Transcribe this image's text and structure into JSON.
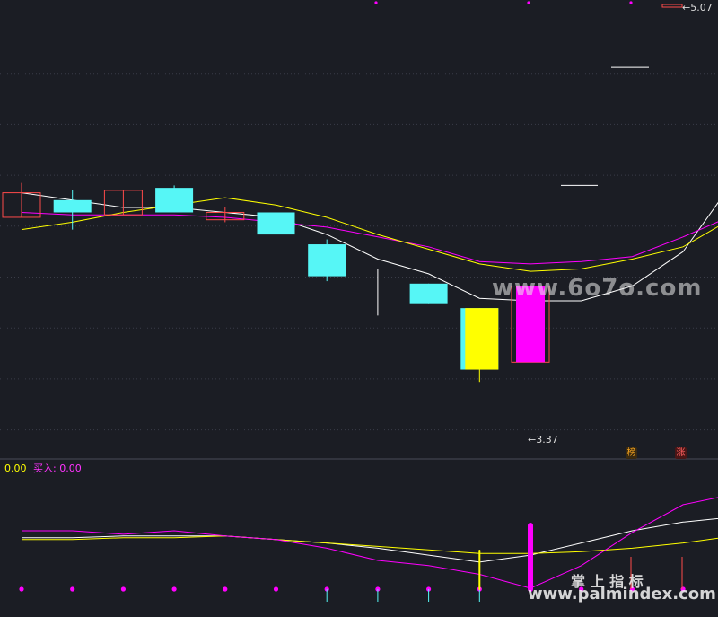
{
  "chart_data": {
    "type": "candlestick",
    "ylim": [
      3.25,
      5.1
    ],
    "grid": true,
    "candles": [
      {
        "open": 4.23,
        "close": 4.33,
        "high": 4.37,
        "low": 4.23,
        "color": "red"
      },
      {
        "open": 4.3,
        "close": 4.25,
        "high": 4.34,
        "low": 4.18,
        "color": "cyan"
      },
      {
        "open": 4.24,
        "close": 4.34,
        "high": 4.34,
        "low": 4.24,
        "color": "red"
      },
      {
        "open": 4.35,
        "close": 4.25,
        "high": 4.36,
        "low": 4.25,
        "color": "cyan"
      },
      {
        "open": 4.22,
        "close": 4.25,
        "high": 4.27,
        "low": 4.21,
        "color": "red"
      },
      {
        "open": 4.25,
        "close": 4.16,
        "high": 4.26,
        "low": 4.1,
        "color": "cyan"
      },
      {
        "open": 4.12,
        "close": 3.99,
        "high": 4.14,
        "low": 3.97,
        "color": "cyan"
      },
      {
        "open": 3.95,
        "close": 3.95,
        "high": 4.02,
        "low": 3.83,
        "color": "white"
      },
      {
        "open": 3.96,
        "close": 3.88,
        "high": 3.96,
        "low": 3.88,
        "color": "cyan"
      },
      {
        "open": 3.86,
        "close": 3.61,
        "high": 3.86,
        "low": 3.56,
        "color": "yellow"
      },
      {
        "open": 3.64,
        "close": 3.95,
        "high": 3.95,
        "low": 3.64,
        "color": "magenta"
      }
    ],
    "ma_lines": [
      {
        "color": "#ffffff",
        "values": [
          4.33,
          4.3,
          4.27,
          4.27,
          4.25,
          4.23,
          4.16,
          4.06,
          4.0,
          3.9,
          3.89,
          3.89,
          3.95,
          4.09,
          4.38
        ]
      },
      {
        "color": "#ff00ff",
        "values": [
          4.25,
          4.24,
          4.24,
          4.24,
          4.23,
          4.21,
          4.19,
          4.15,
          4.11,
          4.05,
          4.04,
          4.05,
          4.07,
          4.15,
          4.24
        ]
      },
      {
        "color": "#ffff00",
        "values": [
          4.18,
          4.21,
          4.25,
          4.28,
          4.31,
          4.28,
          4.23,
          4.16,
          4.1,
          4.04,
          4.01,
          4.02,
          4.06,
          4.11,
          4.23
        ]
      }
    ],
    "dashes": [
      {
        "y": 4.84,
        "x0": 681,
        "x1": 723
      },
      {
        "y": 4.36,
        "x0": 625,
        "x1": 666
      }
    ],
    "annotations": {
      "high_label": "5.07",
      "low_label": "3.37",
      "arrow": "←"
    },
    "badges": [
      {
        "text": "榜",
        "color": "#f0a020",
        "bg": "#3a2a10"
      },
      {
        "text": "涨",
        "color": "#ff6060",
        "bg": "#4a1616"
      }
    ],
    "indicator": {
      "label_a": "0.00",
      "label_b_name": "买入:",
      "label_b_value": "0.00",
      "ylim": [
        0,
        10
      ],
      "white": [
        5.8,
        5.8,
        6.0,
        6.0,
        6.0,
        5.6,
        5.2,
        4.6,
        3.8,
        3.0,
        3.8,
        5.2,
        6.6,
        7.6,
        8.2
      ],
      "yellow": [
        5.6,
        5.6,
        5.8,
        5.8,
        6.0,
        5.6,
        5.2,
        4.8,
        4.4,
        4.0,
        4.0,
        4.2,
        4.6,
        5.2,
        6.0
      ],
      "magenta": [
        6.6,
        6.6,
        6.2,
        6.6,
        6.0,
        5.6,
        4.6,
        3.2,
        2.6,
        1.6,
        0.0,
        2.6,
        6.4,
        9.6,
        10.8
      ],
      "bars": [
        {
          "i": 9,
          "color": "#ffff00",
          "value": 0.6,
          "thick": false
        },
        {
          "i": 10,
          "color": "#ff00ff",
          "value": 1.0,
          "thick": true
        }
      ]
    }
  },
  "watermark": {
    "url_top": "www.6o7o.com",
    "cn": "掌 上 指 标",
    "url_bottom": "www.palmindex.com"
  },
  "colors": {
    "background": "#1b1d24",
    "grid": "#3b3d48",
    "up": "#ff4a4a",
    "down": "#56f6f6",
    "yellow": "#ffff00",
    "magenta": "#ff00ff"
  }
}
